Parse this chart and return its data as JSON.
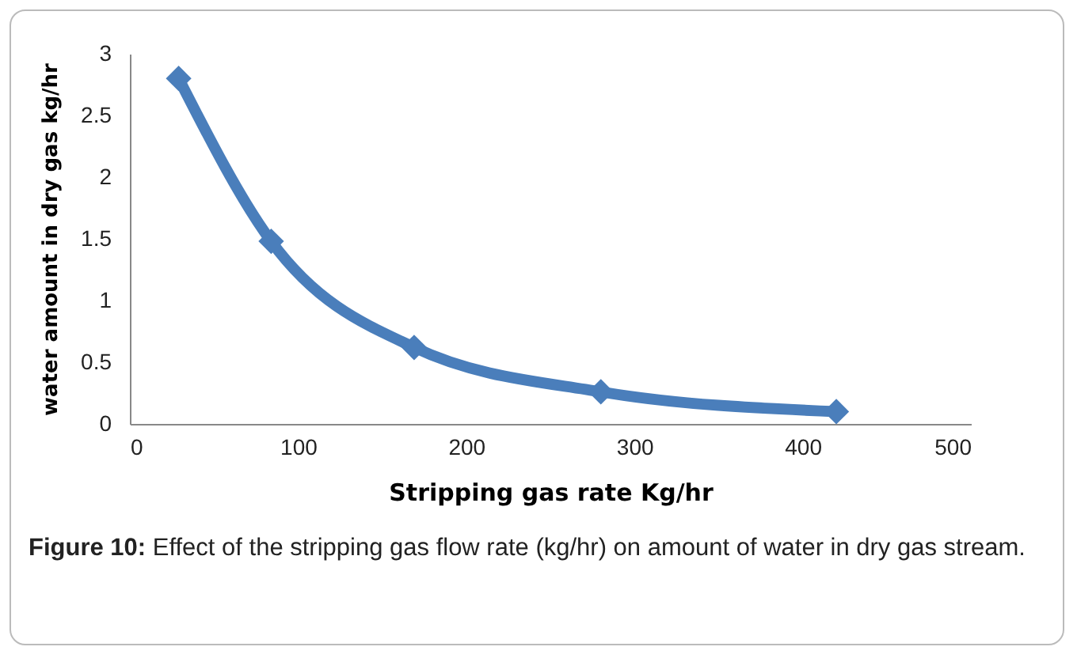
{
  "chart_data": {
    "type": "line",
    "xlabel": "Stripping gas rate Kg/hr",
    "ylabel": "water amount in dry gas kg/hr",
    "x": [
      29,
      84,
      169,
      280,
      420
    ],
    "series": [
      {
        "color": "#4a7ebb",
        "values": [
          2.8,
          1.48,
          0.62,
          0.26,
          0.1
        ]
      }
    ],
    "xlim": [
      0,
      500
    ],
    "xticks": [
      0,
      100,
      200,
      300,
      400,
      500
    ],
    "ylim": [
      0,
      3
    ],
    "yticks": [
      0,
      0.5,
      1,
      1.5,
      2,
      2.5,
      3
    ],
    "grid": false,
    "legend": false,
    "marker": "diamond",
    "line_style": "solid",
    "annotations": [
      "Figure 10: Effect of the stripping gas flow rate (kg/hr) on amount of water in dry gas stream."
    ]
  }
}
